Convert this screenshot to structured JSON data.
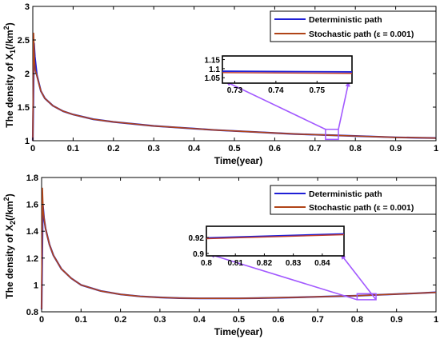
{
  "colors": {
    "deterministic": "#1f1fd6",
    "stochastic": "#b04418",
    "stochastic_zoom": "#c0392b",
    "annotation": "#a259ff",
    "axis": "#000000"
  },
  "chart_data": [
    {
      "type": "line",
      "title": "",
      "xlabel": "Time(year)",
      "ylabel_prefix": "The density of X",
      "ylabel_sub": "1",
      "ylabel_suffix": "(/km",
      "ylabel_sup": "2",
      "ylabel_close": ")",
      "xlim": [
        0,
        1
      ],
      "ylim": [
        1,
        3
      ],
      "xticks": [
        0,
        0.1,
        0.2,
        0.3,
        0.4,
        0.5,
        0.6,
        0.7,
        0.8,
        0.9,
        1
      ],
      "xtick_labels": [
        "0",
        "0.1",
        "0.2",
        "0.3",
        "0.4",
        "0.5",
        "0.6",
        "0.7",
        "0.8",
        "0.9",
        "1"
      ],
      "yticks": [
        1,
        1.5,
        2,
        2.5,
        3
      ],
      "ytick_labels": [
        "1",
        "1.5",
        "2",
        "2.5",
        "3"
      ],
      "grid": false,
      "legend_position": "top-right",
      "series": [
        {
          "name": "Deterministic path",
          "x": [
            0,
            0.003,
            0.005,
            0.01,
            0.02,
            0.03,
            0.05,
            0.075,
            0.1,
            0.15,
            0.2,
            0.25,
            0.3,
            0.35,
            0.4,
            0.45,
            0.5,
            0.55,
            0.6,
            0.65,
            0.7,
            0.75,
            0.8,
            0.85,
            0.9,
            0.95,
            1
          ],
          "y": [
            1.0,
            2.45,
            2.25,
            1.98,
            1.74,
            1.63,
            1.52,
            1.44,
            1.39,
            1.32,
            1.28,
            1.25,
            1.22,
            1.2,
            1.18,
            1.16,
            1.145,
            1.13,
            1.115,
            1.1,
            1.09,
            1.08,
            1.07,
            1.06,
            1.05,
            1.045,
            1.04
          ]
        },
        {
          "name": "Stochastic path (ε = 0.001)",
          "x": [
            0,
            0.002,
            0.004,
            0.006,
            0.01,
            0.02,
            0.03,
            0.05,
            0.075,
            0.1,
            0.15,
            0.2,
            0.25,
            0.3,
            0.35,
            0.4,
            0.45,
            0.5,
            0.55,
            0.6,
            0.65,
            0.7,
            0.75,
            0.8,
            0.85,
            0.9,
            0.95,
            1
          ],
          "y": [
            1.0,
            2.6,
            2.2,
            2.05,
            1.97,
            1.74,
            1.63,
            1.52,
            1.44,
            1.39,
            1.32,
            1.28,
            1.25,
            1.22,
            1.2,
            1.18,
            1.16,
            1.145,
            1.13,
            1.115,
            1.1,
            1.09,
            1.08,
            1.07,
            1.06,
            1.05,
            1.045,
            1.04
          ]
        }
      ],
      "inset": {
        "xlim": [
          0.727,
          0.7585
        ],
        "ylim": [
          1.02,
          1.17
        ],
        "xticks": [
          0.73,
          0.74,
          0.75
        ],
        "xtick_labels": [
          "0.73",
          "0.74",
          "0.75"
        ],
        "yticks": [
          1.05,
          1.1,
          1.15
        ],
        "ytick_labels": [
          "1.05",
          "1.1",
          "1.15"
        ],
        "series": [
          {
            "name": "Deterministic path",
            "x": [
              0.727,
              0.7585
            ],
            "y": [
              1.086,
              1.082
            ]
          },
          {
            "name": "Stochastic path (ε = 0.001)",
            "x": [
              0.727,
              0.7585
            ],
            "y": [
              1.078,
              1.074
            ]
          }
        ],
        "zoom_box": {
          "x": [
            0.726,
            0.758
          ],
          "y": [
            1.02,
            1.17
          ]
        }
      }
    },
    {
      "type": "line",
      "title": "",
      "xlabel": "Time(year)",
      "ylabel_prefix": "The density of  X",
      "ylabel_sub": "2",
      "ylabel_suffix": "(/km",
      "ylabel_sup": "2",
      "ylabel_close": ")",
      "xlim": [
        0,
        1
      ],
      "ylim": [
        0.8,
        1.8
      ],
      "xticks": [
        0,
        0.1,
        0.2,
        0.3,
        0.4,
        0.5,
        0.6,
        0.7,
        0.8,
        0.9,
        1
      ],
      "xtick_labels": [
        "0",
        "0.1",
        "0.2",
        "0.3",
        "0.4",
        "0.5",
        "0.6",
        "0.7",
        "0.8",
        "0.9",
        "1"
      ],
      "yticks": [
        0.8,
        1,
        1.2,
        1.4,
        1.6,
        1.8
      ],
      "ytick_labels": [
        "0.8",
        "1",
        "1.2",
        "1.4",
        "1.6",
        "1.8"
      ],
      "grid": false,
      "legend_position": "top-right",
      "series": [
        {
          "name": "Deterministic path",
          "x": [
            0,
            0.003,
            0.006,
            0.01,
            0.02,
            0.03,
            0.05,
            0.075,
            0.1,
            0.15,
            0.2,
            0.25,
            0.3,
            0.35,
            0.4,
            0.45,
            0.5,
            0.55,
            0.6,
            0.65,
            0.7,
            0.75,
            0.8,
            0.85,
            0.9,
            0.95,
            1
          ],
          "y": [
            0.82,
            1.6,
            1.5,
            1.42,
            1.3,
            1.22,
            1.12,
            1.05,
            1.0,
            0.955,
            0.93,
            0.915,
            0.907,
            0.902,
            0.9,
            0.9,
            0.9,
            0.902,
            0.905,
            0.908,
            0.912,
            0.916,
            0.92,
            0.926,
            0.932,
            0.938,
            0.945
          ]
        },
        {
          "name": "Stochastic path (ε = 0.001)",
          "x": [
            0,
            0.002,
            0.004,
            0.006,
            0.01,
            0.02,
            0.03,
            0.05,
            0.075,
            0.1,
            0.15,
            0.2,
            0.25,
            0.3,
            0.35,
            0.4,
            0.45,
            0.5,
            0.55,
            0.6,
            0.65,
            0.7,
            0.75,
            0.8,
            0.85,
            0.9,
            0.95,
            1
          ],
          "y": [
            0.82,
            1.72,
            1.55,
            1.5,
            1.42,
            1.3,
            1.22,
            1.12,
            1.05,
            1.0,
            0.955,
            0.93,
            0.915,
            0.907,
            0.902,
            0.9,
            0.9,
            0.9,
            0.902,
            0.905,
            0.908,
            0.912,
            0.916,
            0.92,
            0.926,
            0.932,
            0.938,
            0.945
          ]
        }
      ],
      "inset": {
        "xlim": [
          0.8,
          0.8475
        ],
        "ylim": [
          0.897,
          0.934
        ],
        "xticks": [
          0.8,
          0.81,
          0.82,
          0.83,
          0.84
        ],
        "xtick_labels": [
          "0.8",
          "0.81",
          "0.82",
          "0.83",
          "0.84"
        ],
        "yticks": [
          0.9,
          0.92
        ],
        "ytick_labels": [
          "0.9",
          "0.92"
        ],
        "series": [
          {
            "name": "Deterministic path",
            "x": [
              0.8,
              0.8475
            ],
            "y": [
              0.9195,
              0.9245
            ]
          },
          {
            "name": "Stochastic path (ε = 0.001)",
            "x": [
              0.8,
              0.8475
            ],
            "y": [
              0.9185,
              0.9235
            ]
          }
        ],
        "zoom_box": {
          "x": [
            0.8,
            0.848
          ],
          "y": [
            0.89,
            0.935
          ]
        }
      }
    }
  ]
}
